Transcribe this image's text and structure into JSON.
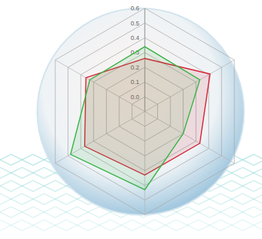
{
  "chart_data": {
    "type": "radar",
    "categories": [
      null,
      null,
      null,
      null,
      null,
      null
    ],
    "series": [
      {
        "color": "#d6283a",
        "values": [
          0.26,
          0.41,
          0.33,
          0.33,
          0.37,
          0.36
        ]
      },
      {
        "color": "#3cb54a",
        "values": [
          0.34,
          0.33,
          0.2,
          0.43,
          0.48,
          0.33
        ]
      }
    ],
    "ylim": [
      -0.1,
      0.6
    ],
    "yticks": [
      {
        "value": 0,
        "label": "0.0"
      },
      0.1,
      0.2,
      0.3,
      0.4,
      0.5,
      0.6
    ],
    "grid": true
  }
}
